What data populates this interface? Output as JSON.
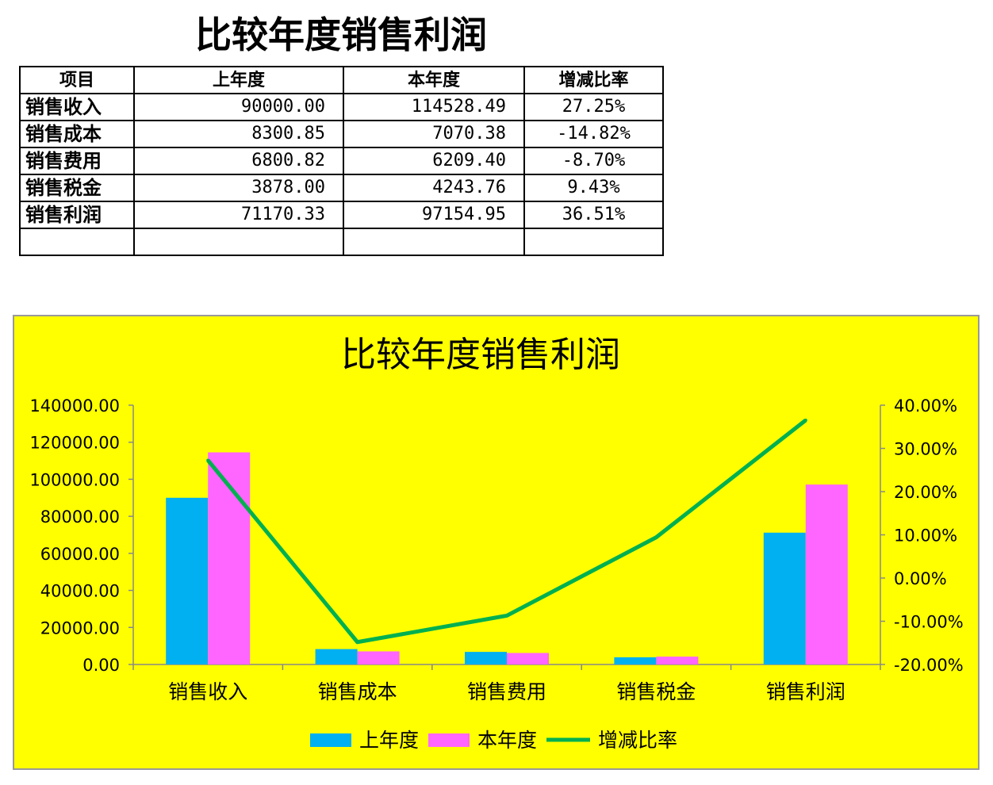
{
  "title": "比较年度销售利润",
  "table": {
    "headers": [
      "项目",
      "上年度",
      "本年度",
      "增减比率"
    ],
    "rows": [
      [
        "销售收入",
        "90000.00",
        "114528.49",
        "27.25%"
      ],
      [
        "销售成本",
        "8300.85",
        "7070.38",
        "-14.82%"
      ],
      [
        "销售费用",
        "6800.82",
        "6209.40",
        "-8.70%"
      ],
      [
        "销售税金",
        "3878.00",
        "4243.76",
        "9.43%"
      ],
      [
        "销售利润",
        "71170.33",
        "97154.95",
        "36.51%"
      ],
      [
        "",
        "",
        "",
        ""
      ]
    ]
  },
  "chart_data": {
    "type": "bar",
    "title": "比较年度销售利润",
    "background": "#FFFF00",
    "categories": [
      "销售收入",
      "销售成本",
      "销售费用",
      "销售税金",
      "销售利润"
    ],
    "series": [
      {
        "name": "上年度",
        "type": "bar",
        "axis": "left",
        "color": "#00B0F0",
        "values": [
          90000.0,
          8300.85,
          6800.82,
          3878.0,
          71170.33
        ]
      },
      {
        "name": "本年度",
        "type": "bar",
        "axis": "left",
        "color": "#FF66FF",
        "values": [
          114528.49,
          7070.38,
          6209.4,
          4243.76,
          97154.95
        ]
      },
      {
        "name": "增减比率",
        "type": "line",
        "axis": "right",
        "color": "#00B050",
        "values": [
          27.25,
          -14.82,
          -8.7,
          9.43,
          36.51
        ]
      }
    ],
    "left_axis": {
      "range": [
        0,
        140000
      ],
      "ticks": [
        "0.00",
        "20000.00",
        "40000.00",
        "60000.00",
        "80000.00",
        "100000.00",
        "120000.00",
        "140000.00"
      ]
    },
    "right_axis": {
      "range": [
        -20,
        40
      ],
      "ticks": [
        "-20.00%",
        "-10.00%",
        "0.00%",
        "10.00%",
        "20.00%",
        "30.00%",
        "40.00%"
      ]
    },
    "legend": "bottom",
    "grid": false
  }
}
